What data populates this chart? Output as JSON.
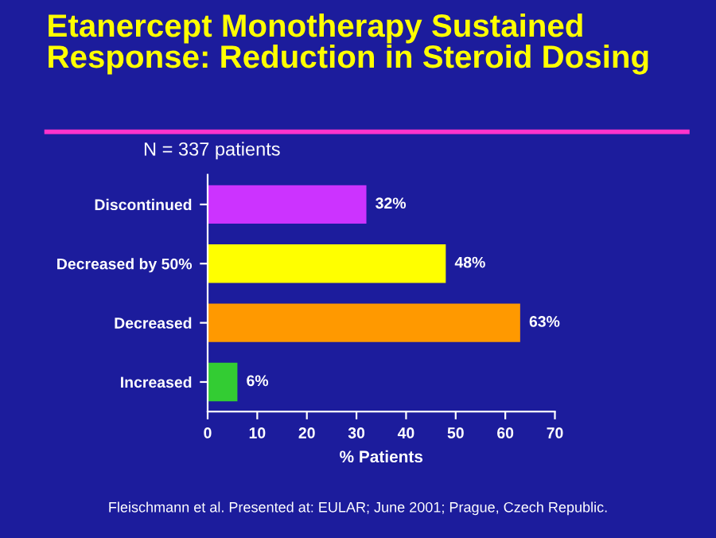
{
  "chart_data": {
    "type": "bar",
    "orientation": "horizontal",
    "title": "Etanercept Monotherapy Sustained\nResponse: Reduction in Steroid Dosing",
    "subtitle": "N = 337 patients",
    "xlabel": "% Patients",
    "categories": [
      "Discontinued",
      "Decreased by 50%",
      "Decreased",
      "Increased"
    ],
    "values": [
      32,
      48,
      63,
      6
    ],
    "colors": [
      "#cc33ff",
      "#ffff00",
      "#ff9900",
      "#33cc33"
    ],
    "value_labels": [
      "32%",
      "48%",
      "63%",
      "6%"
    ],
    "xlim": [
      0,
      70
    ],
    "xticks": [
      0,
      10,
      20,
      30,
      40,
      50,
      60,
      70
    ],
    "grid": false,
    "annotations": [
      "Fleischmann et al. Presented at: EULAR; June 2001; Prague, Czech Republic."
    ]
  }
}
